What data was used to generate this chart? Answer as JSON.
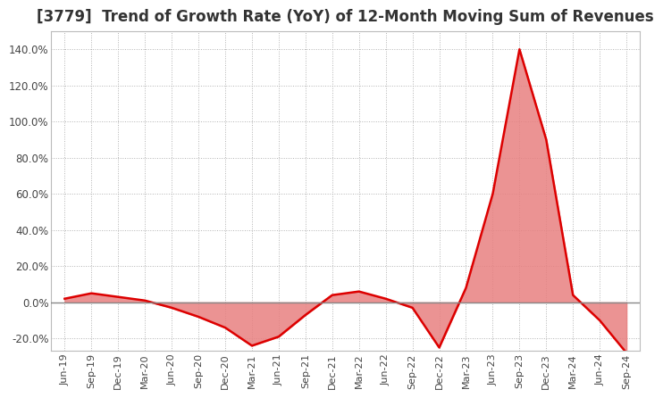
{
  "title": "[3779]  Trend of Growth Rate (YoY) of 12-Month Moving Sum of Revenues",
  "title_fontsize": 12,
  "background_color": "#ffffff",
  "plot_bg_color": "#ffffff",
  "grid_color": "#aaaaaa",
  "line_color": "#dd0000",
  "zero_line_color": "#888888",
  "ylim": [
    -0.27,
    1.5
  ],
  "yticks": [
    -0.2,
    0.0,
    0.2,
    0.4,
    0.6,
    0.8,
    1.0,
    1.2,
    1.4
  ],
  "dates": [
    "Jun-19",
    "Sep-19",
    "Dec-19",
    "Mar-20",
    "Jun-20",
    "Sep-20",
    "Dec-20",
    "Mar-21",
    "Jun-21",
    "Sep-21",
    "Dec-21",
    "Mar-22",
    "Jun-22",
    "Sep-22",
    "Dec-22",
    "Mar-23",
    "Jun-23",
    "Sep-23",
    "Dec-23",
    "Mar-24",
    "Jun-24",
    "Sep-24"
  ],
  "values": [
    0.02,
    0.05,
    0.03,
    0.01,
    -0.03,
    -0.08,
    -0.14,
    -0.24,
    -0.19,
    -0.07,
    0.04,
    0.06,
    0.02,
    -0.03,
    -0.25,
    0.08,
    0.6,
    1.4,
    0.9,
    0.04,
    -0.1,
    -0.28
  ]
}
